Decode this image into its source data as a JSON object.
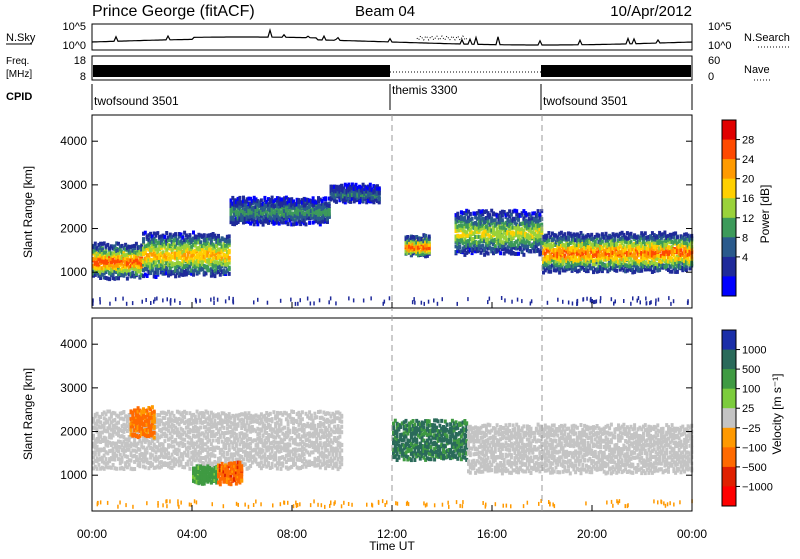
{
  "header": {
    "station": "Prince George (fitACF)",
    "beam": "Beam 04",
    "date": "10/Apr/2012"
  },
  "nsky": {
    "left_label": "N.Sky",
    "right_label": "N.Search",
    "left_ticks": [
      "10^5",
      "10^0"
    ],
    "right_ticks": [
      "10^5",
      "10^0"
    ]
  },
  "freq": {
    "left_label_line1": "Freq.",
    "left_label_line2": "[MHz]",
    "left_ticks": [
      "18",
      "8"
    ],
    "right_ticks": [
      "60",
      "0"
    ],
    "right_label": "Nave"
  },
  "cpid": {
    "label": "CPID",
    "segments": [
      {
        "name": "twofsound 3501",
        "start_hour": 0,
        "end_hour": 12
      },
      {
        "name": "themis 3300",
        "start_hour": 12,
        "end_hour": 18
      },
      {
        "name": "twofsound 3501",
        "start_hour": 18,
        "end_hour": 24
      }
    ]
  },
  "power_panel": {
    "ylabel": "Slant Range [km]",
    "yticks": [
      "4000",
      "3000",
      "2000",
      "1000"
    ],
    "colorbar_label": "Power [dB]",
    "colorbar_ticks": [
      "28",
      "24",
      "20",
      "16",
      "12",
      "8",
      "4"
    ],
    "colors": [
      "#e00000",
      "#ff4a00",
      "#ff9a00",
      "#ffd000",
      "#9ad23a",
      "#3c9a5a",
      "#2a5a8c",
      "#1f2a9a",
      "#0000ff"
    ]
  },
  "velocity_panel": {
    "ylabel": "Slant Range [km]",
    "yticks": [
      "4000",
      "3000",
      "2000",
      "1000"
    ],
    "colorbar_label": "Velocity [m s⁻¹]",
    "colorbar_ticks": [
      "1000",
      "500",
      "100",
      "25",
      "−25",
      "−100",
      "−500",
      "−1000"
    ],
    "colors": [
      "#1a2ea8",
      "#2a6a5a",
      "#3f9a42",
      "#7ccc3c",
      "#c4c4c4",
      "#ff9900",
      "#ff6a00",
      "#e02000",
      "#ff0000"
    ]
  },
  "x_axis": {
    "ticks": [
      "00:00",
      "04:00",
      "08:00",
      "12:00",
      "16:00",
      "20:00",
      "00:00"
    ],
    "label": "Time UT"
  },
  "chart_data": {
    "type": "heatmap",
    "title": "Prince George (fitACF)  Beam 04  10/Apr/2012",
    "xlabel": "Time UT",
    "ylabel": "Slant Range [km]",
    "xlim_hours": [
      0,
      24
    ],
    "ylim_km": [
      180,
      4600
    ],
    "power_range_db": [
      0,
      30
    ],
    "velocity_range_ms": [
      -1000,
      1000
    ],
    "mode_changes_hours": [
      12,
      18
    ],
    "power_bands": [
      {
        "t0": 0.0,
        "t1": 2.0,
        "center_km": 1250,
        "width_km": 700,
        "peak_db": 28
      },
      {
        "t0": 2.0,
        "t1": 5.5,
        "center_km": 1400,
        "width_km": 900,
        "peak_db": 22
      },
      {
        "t0": 5.5,
        "t1": 9.5,
        "center_km": 2400,
        "width_km": 500,
        "peak_db": 12
      },
      {
        "t0": 9.5,
        "t1": 11.5,
        "center_km": 2800,
        "width_km": 300,
        "peak_db": 10
      },
      {
        "t0": 12.5,
        "t1": 13.5,
        "center_km": 1600,
        "width_km": 400,
        "peak_db": 28
      },
      {
        "t0": 14.5,
        "t1": 18.0,
        "center_km": 1900,
        "width_km": 900,
        "peak_db": 18
      },
      {
        "t0": 18.0,
        "t1": 24.0,
        "center_km": 1450,
        "width_km": 800,
        "peak_db": 26
      }
    ],
    "velocity_features": [
      {
        "t0": 0.0,
        "t1": 10.0,
        "center_km": 1800,
        "width_km": 1200,
        "velocity_ms": 0
      },
      {
        "t0": 4.0,
        "t1": 5.0,
        "center_km": 1000,
        "width_km": 300,
        "velocity_ms": 150
      },
      {
        "t0": 5.0,
        "t1": 6.0,
        "center_km": 1050,
        "width_km": 400,
        "velocity_ms": -200
      },
      {
        "t0": 1.5,
        "t1": 2.5,
        "center_km": 2200,
        "width_km": 600,
        "velocity_ms": -150
      },
      {
        "t0": 12.0,
        "t1": 15.0,
        "center_km": 1800,
        "width_km": 800,
        "velocity_ms": 400
      },
      {
        "t0": 15.0,
        "t1": 24.0,
        "center_km": 1600,
        "width_km": 1000,
        "velocity_ms": 0
      }
    ]
  }
}
